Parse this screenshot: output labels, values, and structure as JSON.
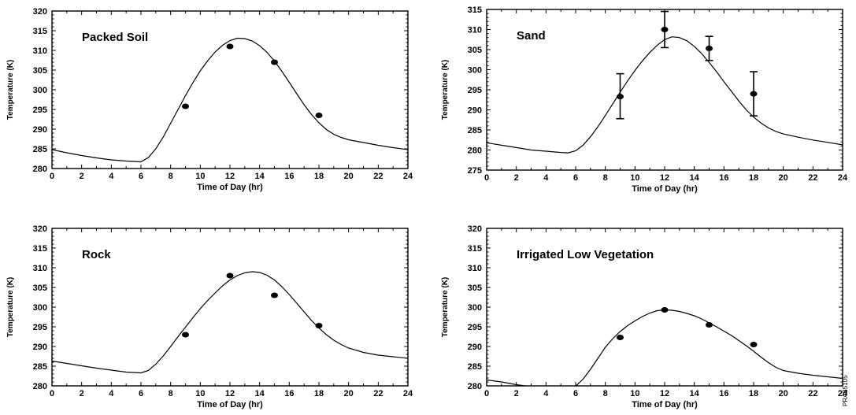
{
  "figure": {
    "side_code": "PRAB5105"
  },
  "chart_data": [
    {
      "type": "line",
      "title": "Packed Soil",
      "xlabel": "Time of Day (hr)",
      "ylabel": "Temperature (K)",
      "xlim": [
        0,
        24
      ],
      "ylim": [
        280,
        320
      ],
      "xticks": [
        0,
        2,
        4,
        6,
        8,
        10,
        12,
        14,
        16,
        18,
        20,
        22,
        24
      ],
      "yticks": [
        280,
        285,
        290,
        295,
        300,
        305,
        310,
        315,
        320
      ],
      "series": [
        {
          "kind": "model_curve",
          "x": [
            0,
            1,
            2,
            3,
            4,
            5,
            6,
            6.5,
            7,
            7.5,
            8,
            8.5,
            9,
            9.5,
            10,
            10.5,
            11,
            11.5,
            12,
            12.5,
            13,
            13.5,
            14,
            14.5,
            15,
            15.5,
            16,
            16.5,
            17,
            17.5,
            18,
            18.5,
            19,
            19.5,
            20,
            21,
            22,
            23,
            24
          ],
          "y": [
            284.8,
            284.0,
            283.3,
            282.7,
            282.2,
            281.9,
            281.7,
            282.8,
            285.0,
            288.0,
            291.5,
            295.0,
            298.5,
            301.8,
            304.8,
            307.4,
            309.6,
            311.3,
            312.5,
            313.1,
            313.0,
            312.4,
            311.2,
            309.5,
            307.3,
            304.7,
            301.9,
            299.0,
            296.2,
            293.7,
            291.6,
            289.9,
            288.7,
            287.9,
            287.3,
            286.6,
            285.9,
            285.3,
            284.8
          ]
        },
        {
          "kind": "measured",
          "x": [
            9,
            12,
            15,
            18
          ],
          "y": [
            295.8,
            311.0,
            307.0,
            293.5
          ]
        }
      ]
    },
    {
      "type": "line",
      "title": "Sand",
      "xlabel": "Time of Day (hr)",
      "ylabel": "Temperature (K)",
      "xlim": [
        0,
        24
      ],
      "ylim": [
        275,
        315
      ],
      "xticks": [
        0,
        2,
        4,
        6,
        8,
        10,
        12,
        14,
        16,
        18,
        20,
        22,
        24
      ],
      "yticks": [
        275,
        280,
        285,
        290,
        295,
        300,
        305,
        310,
        315
      ],
      "series": [
        {
          "kind": "model_curve",
          "x": [
            0,
            1,
            2,
            3,
            4,
            5,
            5.5,
            6,
            6.5,
            7,
            7.5,
            8,
            8.5,
            9,
            9.5,
            10,
            10.5,
            11,
            11.5,
            12,
            12.5,
            13,
            13.5,
            14,
            14.5,
            15,
            15.5,
            16,
            16.5,
            17,
            17.5,
            18,
            18.5,
            19,
            19.5,
            20,
            21,
            22,
            23,
            24
          ],
          "y": [
            281.8,
            281.2,
            280.6,
            280.0,
            279.7,
            279.4,
            279.3,
            279.8,
            281.2,
            283.3,
            285.8,
            288.6,
            291.5,
            294.4,
            297.2,
            299.8,
            302.2,
            304.3,
            306.1,
            307.5,
            308.2,
            308.0,
            307.2,
            305.8,
            304.0,
            301.8,
            299.5,
            297.0,
            294.6,
            292.2,
            290.0,
            288.2,
            286.7,
            285.5,
            284.6,
            284.0,
            283.2,
            282.5,
            281.9,
            281.3
          ]
        },
        {
          "kind": "measured",
          "x": [
            9,
            12,
            15,
            18
          ],
          "y": [
            293.3,
            310.0,
            305.3,
            294.0
          ],
          "err_low": [
            287.8,
            305.5,
            302.3,
            288.5
          ],
          "err_high": [
            299.0,
            314.5,
            308.3,
            299.5
          ]
        }
      ]
    },
    {
      "type": "line",
      "title": "Rock",
      "xlabel": "Time of Day (hr)",
      "ylabel": "Temperature (K)",
      "xlim": [
        0,
        24
      ],
      "ylim": [
        280,
        320
      ],
      "xticks": [
        0,
        2,
        4,
        6,
        8,
        10,
        12,
        14,
        16,
        18,
        20,
        22,
        24
      ],
      "yticks": [
        280,
        285,
        290,
        295,
        300,
        305,
        310,
        315,
        320
      ],
      "series": [
        {
          "kind": "model_curve",
          "x": [
            0,
            1,
            2,
            3,
            4,
            5,
            6,
            6.5,
            7,
            7.5,
            8,
            8.5,
            9,
            9.5,
            10,
            10.5,
            11,
            11.5,
            12,
            12.5,
            13,
            13.5,
            14,
            14.5,
            15,
            15.5,
            16,
            16.5,
            17,
            17.5,
            18,
            18.5,
            19,
            19.5,
            20,
            21,
            22,
            23,
            24
          ],
          "y": [
            286.3,
            285.7,
            285.1,
            284.5,
            284.0,
            283.5,
            283.3,
            283.9,
            285.5,
            287.6,
            290.0,
            292.5,
            294.9,
            297.3,
            299.6,
            301.7,
            303.6,
            305.4,
            306.9,
            308.0,
            308.7,
            309.0,
            308.8,
            308.1,
            306.9,
            305.2,
            303.2,
            301.0,
            298.8,
            296.6,
            294.7,
            293.0,
            291.6,
            290.5,
            289.6,
            288.5,
            287.8,
            287.4,
            287.0
          ]
        },
        {
          "kind": "measured",
          "x": [
            9,
            12,
            15,
            18
          ],
          "y": [
            293.0,
            308.0,
            303.0,
            295.3
          ]
        }
      ]
    },
    {
      "type": "line",
      "title": "Irrigated Low Vegetation",
      "xlabel": "Time of Day (hr)",
      "ylabel": "Temperature (K)",
      "xlim": [
        0,
        24
      ],
      "ylim": [
        280,
        320
      ],
      "xticks": [
        0,
        2,
        4,
        6,
        8,
        10,
        12,
        14,
        16,
        18,
        20,
        22,
        24
      ],
      "yticks": [
        280,
        285,
        290,
        295,
        300,
        305,
        310,
        315,
        320
      ],
      "series": [
        {
          "kind": "model_curve",
          "x": [
            0,
            1,
            2,
            3,
            4,
            5,
            5.8,
            6.5,
            7,
            7.5,
            8,
            8.5,
            9,
            9.5,
            10,
            10.5,
            11,
            11.5,
            12,
            12.5,
            13,
            13.5,
            14,
            14.5,
            15,
            15.5,
            16,
            16.5,
            17,
            17.5,
            18,
            18.5,
            19,
            19.5,
            20,
            21,
            22,
            23,
            24
          ],
          "y": [
            281.5,
            281.0,
            280.3,
            279.8,
            279.5,
            279.3,
            279.2,
            281.7,
            284.2,
            287.0,
            289.8,
            292.0,
            293.8,
            295.3,
            296.5,
            297.6,
            298.5,
            299.1,
            299.3,
            299.2,
            298.9,
            298.4,
            297.8,
            297.0,
            296.0,
            295.0,
            293.9,
            292.8,
            291.5,
            290.2,
            288.8,
            287.3,
            285.9,
            284.7,
            283.9,
            283.2,
            282.7,
            282.3,
            281.9
          ]
        },
        {
          "kind": "measured",
          "x": [
            9,
            12,
            15,
            18
          ],
          "y": [
            292.3,
            299.3,
            295.5,
            290.5
          ]
        }
      ]
    }
  ]
}
